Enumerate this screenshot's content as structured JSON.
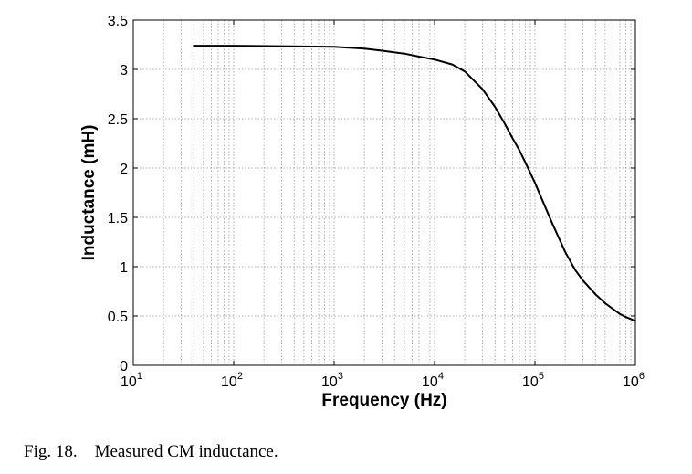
{
  "caption": "Fig. 18.    Measured CM inductance.",
  "chart_data": {
    "type": "line",
    "xlabel": "Frequency (Hz)",
    "ylabel": "Inductance (mH)",
    "xscale": "log",
    "xlim": [
      10,
      1000000
    ],
    "ylim": [
      0,
      3.5
    ],
    "grid": true,
    "x_ticks": [
      {
        "base": "10",
        "exp": "1"
      },
      {
        "base": "10",
        "exp": "2"
      },
      {
        "base": "10",
        "exp": "3"
      },
      {
        "base": "10",
        "exp": "4"
      },
      {
        "base": "10",
        "exp": "5"
      },
      {
        "base": "10",
        "exp": "6"
      }
    ],
    "y_ticks": [
      "0",
      "0.5",
      "1",
      "1.5",
      "2",
      "2.5",
      "3",
      "3.5"
    ],
    "series": [
      {
        "x": [
          40,
          100,
          300,
          1000,
          2000,
          3000,
          5000,
          7000,
          10000,
          15000,
          20000,
          30000,
          40000,
          50000,
          60000,
          70000,
          80000,
          100000,
          120000,
          150000,
          200000,
          250000,
          300000,
          400000,
          500000,
          600000,
          700000,
          800000,
          1000000
        ],
        "y": [
          3.24,
          3.24,
          3.235,
          3.23,
          3.21,
          3.19,
          3.16,
          3.13,
          3.1,
          3.05,
          2.98,
          2.8,
          2.62,
          2.45,
          2.3,
          2.18,
          2.06,
          1.85,
          1.66,
          1.43,
          1.15,
          0.97,
          0.86,
          0.72,
          0.63,
          0.57,
          0.52,
          0.49,
          0.45
        ]
      }
    ]
  }
}
